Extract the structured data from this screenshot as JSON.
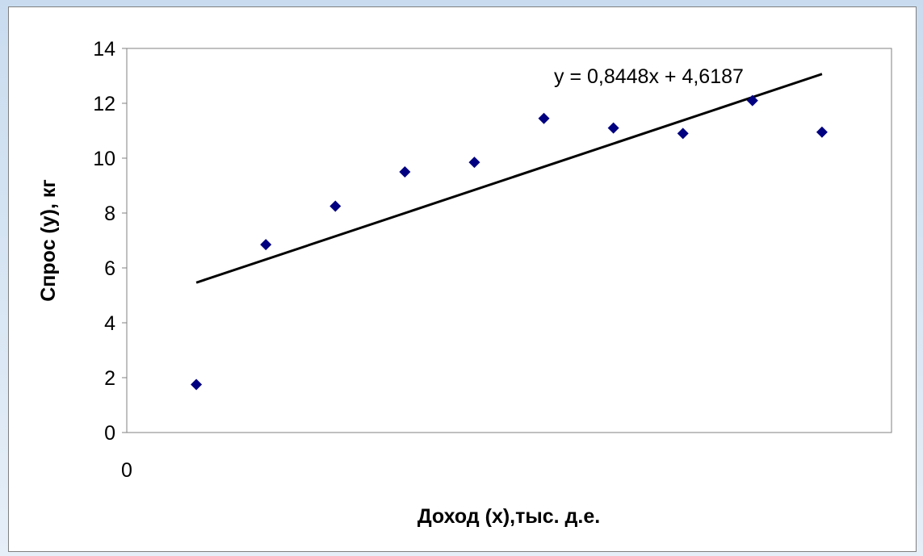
{
  "chart_data": {
    "type": "scatter",
    "title": "",
    "xlabel": "Доход (x),тыс. д.е.",
    "ylabel": "Спрос (y), кг",
    "ylim": [
      0,
      14
    ],
    "yticks": [
      "0",
      "2",
      "4",
      "6",
      "8",
      "10",
      "12",
      "14"
    ],
    "xticks": [
      "0"
    ],
    "grid": false,
    "legend": "none",
    "point_color": "#000080",
    "series": [
      {
        "x": [
          1,
          2,
          3,
          4,
          5,
          6,
          7,
          8,
          9,
          10
        ],
        "y": [
          1.75,
          6.85,
          8.25,
          9.5,
          9.85,
          11.45,
          11.1,
          10.9,
          12.1,
          10.95
        ]
      }
    ],
    "trendline": {
      "equation": "y = 0,8448x + 4,6187",
      "slope": 0.8448,
      "intercept": 4.6187,
      "x_range": [
        1,
        10
      ],
      "color": "#000000"
    }
  }
}
